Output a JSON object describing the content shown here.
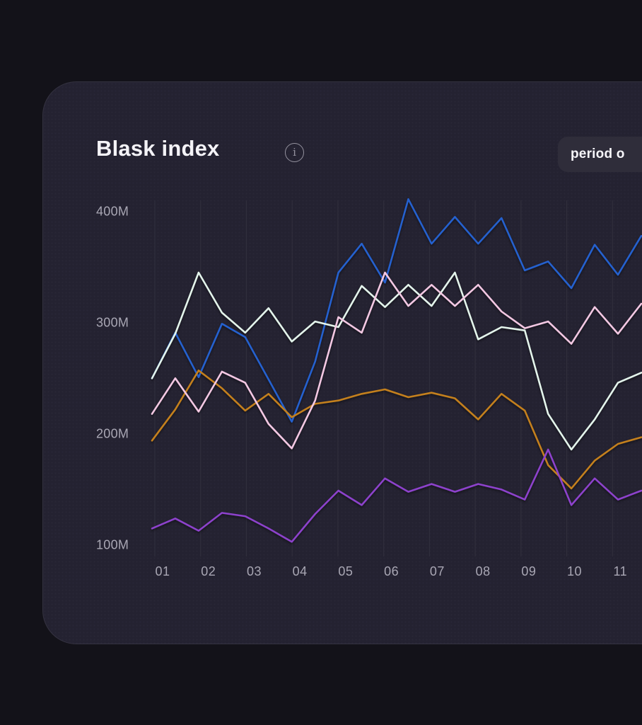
{
  "page": {
    "background": "#131219"
  },
  "card": {
    "background": "#242231",
    "border_color": "#343240"
  },
  "header": {
    "title": "Blask index",
    "info_icon": "circled-i-icon",
    "info_glyph": "i",
    "period_button_label": "period o"
  },
  "colors": {
    "axis_label": "#a9a7b4",
    "gridline": "#302e3c",
    "title_text": "#f4f3f7",
    "button_bg": "#2f2d3a"
  },
  "chart_data": {
    "type": "line",
    "title": "Blask index",
    "xlabel": "",
    "ylabel": "",
    "unit": "M",
    "legend": "none",
    "grid": "vertical-only",
    "x_tick_labels": [
      "01",
      "02",
      "03",
      "04",
      "05",
      "06",
      "07",
      "08",
      "09",
      "10",
      "11"
    ],
    "y_tick_labels": [
      "100M",
      "200M",
      "300M",
      "400M"
    ],
    "ylim_millions": [
      100,
      420
    ],
    "points_per_tick_interval": 2,
    "first_point_offset_ticks": -0.5,
    "series": [
      {
        "name": "blue",
        "color": "#2561cf",
        "values": [
          250,
          291,
          251,
          299,
          287,
          249,
          211,
          265,
          345,
          371,
          336,
          411,
          371,
          395,
          371,
          394,
          347,
          355,
          331,
          370,
          343,
          378
        ]
      },
      {
        "name": "orange",
        "color": "#c4801d",
        "values": [
          194,
          222,
          257,
          241,
          221,
          236,
          215,
          227,
          230,
          236,
          240,
          233,
          237,
          232,
          213,
          236,
          221,
          172,
          151,
          176,
          191,
          197
        ]
      },
      {
        "name": "mint",
        "color": "#e4f5ec",
        "values": [
          250,
          290,
          345,
          309,
          291,
          313,
          283,
          301,
          296,
          333,
          314,
          334,
          315,
          345,
          285,
          296,
          293,
          218,
          186,
          213,
          246,
          255
        ]
      },
      {
        "name": "pink",
        "color": "#f3c8e3",
        "values": [
          218,
          250,
          220,
          256,
          246,
          209,
          187,
          230,
          305,
          291,
          345,
          315,
          334,
          315,
          334,
          310,
          295,
          301,
          281,
          314,
          290,
          317
        ]
      },
      {
        "name": "purple",
        "color": "#8d42cc",
        "values": [
          115,
          124,
          113,
          129,
          126,
          115,
          103,
          128,
          149,
          136,
          160,
          148,
          155,
          148,
          155,
          150,
          141,
          186,
          136,
          160,
          141,
          149
        ]
      }
    ]
  }
}
